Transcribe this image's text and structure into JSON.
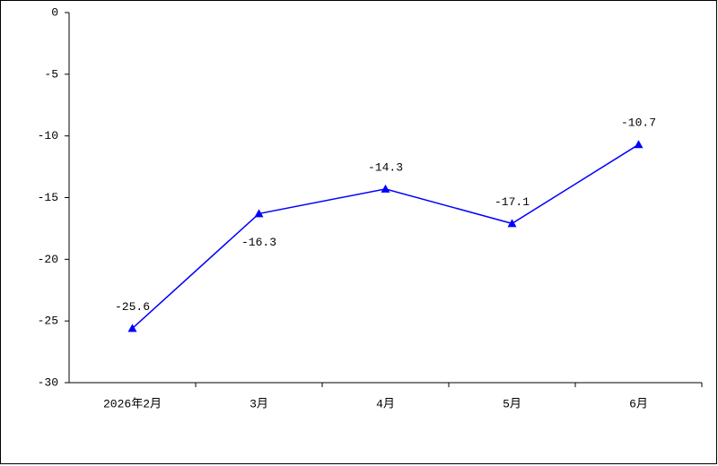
{
  "chart_data": {
    "type": "line",
    "categories": [
      "2026年2月",
      "3月",
      "4月",
      "5月",
      "6月"
    ],
    "series": [
      {
        "color": "#0000ff",
        "values": [
          -25.6,
          -16.3,
          -14.3,
          -17.1,
          -10.7
        ]
      }
    ],
    "ylim": [
      -30,
      0
    ],
    "yticks": [
      0,
      -5,
      -10,
      -15,
      -20,
      -25,
      -30
    ],
    "grid": false
  }
}
